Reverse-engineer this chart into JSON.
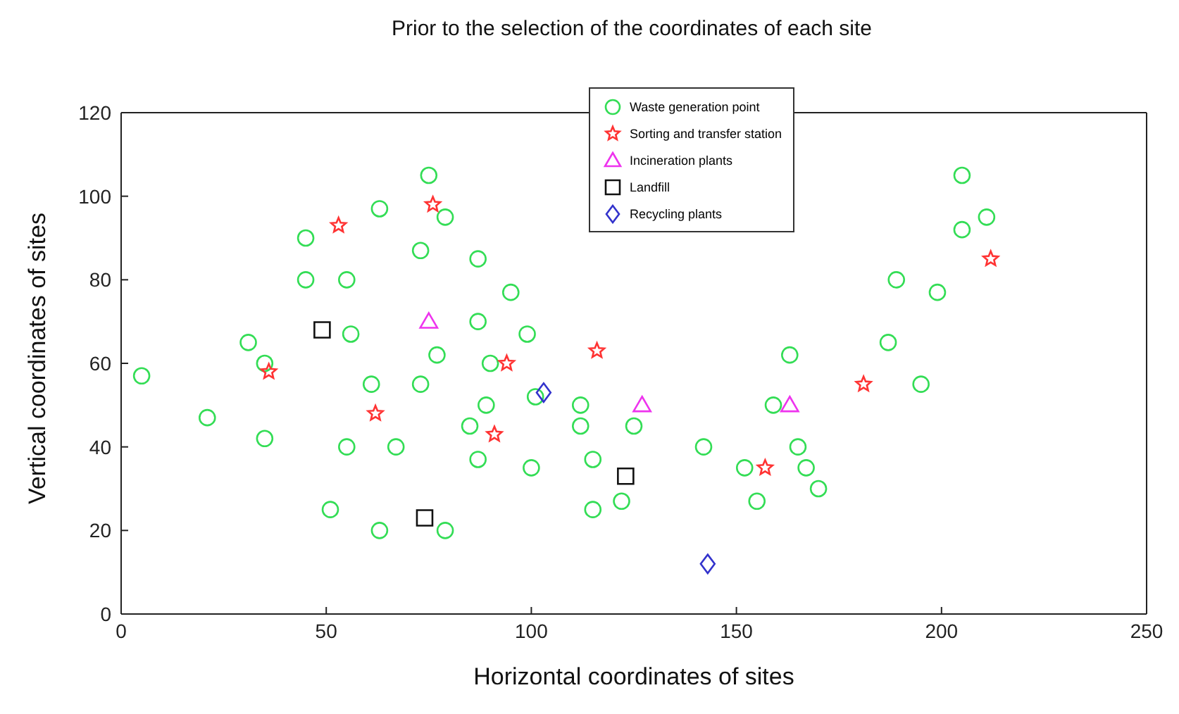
{
  "chart_data": {
    "type": "scatter",
    "title": "Prior to the selection of the coordinates of each site",
    "xlabel": "Horizontal coordinates of sites",
    "ylabel": "Vertical coordinates of sites",
    "xlim": [
      0,
      250
    ],
    "ylim": [
      0,
      120
    ],
    "xticks": [
      0,
      50,
      100,
      150,
      200,
      250
    ],
    "yticks": [
      0,
      20,
      40,
      60,
      80,
      100,
      120
    ],
    "legend": "top",
    "series": [
      {
        "name": "Waste generation point",
        "color": "#33dd55",
        "marker": "circle",
        "x": [
          5,
          21,
          31,
          35,
          35,
          45,
          45,
          55,
          56,
          61,
          63,
          55,
          51,
          63,
          67,
          73,
          73,
          75,
          77,
          79,
          79,
          87,
          87,
          89,
          85,
          87,
          90,
          95,
          99,
          100,
          101,
          112,
          112,
          115,
          115,
          122,
          125,
          142,
          152,
          155,
          159,
          163,
          165,
          167,
          170,
          187,
          189,
          195,
          199,
          205,
          205,
          211
        ],
        "values": [
          57,
          47,
          65,
          60,
          42,
          90,
          80,
          80,
          67,
          55,
          97,
          40,
          25,
          20,
          40,
          87,
          55,
          105,
          62,
          95,
          20,
          85,
          70,
          50,
          45,
          37,
          60,
          77,
          67,
          35,
          52,
          50,
          45,
          37,
          25,
          27,
          45,
          40,
          35,
          27,
          50,
          62,
          40,
          35,
          30,
          65,
          80,
          55,
          77,
          92,
          105,
          95
        ]
      },
      {
        "name": "Sorting and transfer station",
        "color": "#ff3333",
        "marker": "star",
        "x": [
          36,
          53,
          62,
          76,
          91,
          94,
          116,
          157,
          181,
          212
        ],
        "values": [
          58,
          93,
          48,
          98,
          43,
          60,
          63,
          35,
          55,
          85
        ]
      },
      {
        "name": "Incineration plants",
        "color": "#ee33ee",
        "marker": "triangle",
        "x": [
          75,
          127,
          163
        ],
        "values": [
          70,
          50,
          50
        ]
      },
      {
        "name": "Landfill",
        "color": "#111111",
        "marker": "square",
        "x": [
          49,
          74,
          123
        ],
        "values": [
          68,
          23,
          33
        ]
      },
      {
        "name": "Recycling plants",
        "color": "#3333cc",
        "marker": "diamond",
        "x": [
          103,
          143
        ],
        "values": [
          53,
          12
        ]
      }
    ]
  }
}
